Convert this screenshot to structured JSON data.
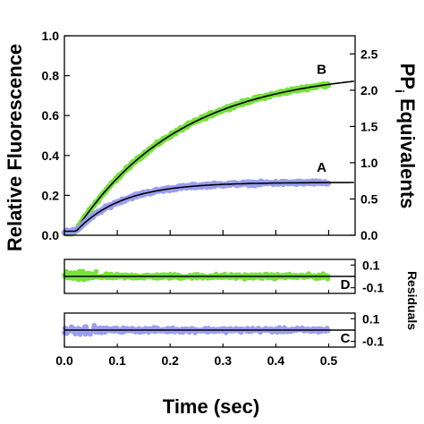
{
  "chart_data": {
    "type": "scatter",
    "main": {
      "xlabel": "Time (sec)",
      "ylabel_left": "Relative Fluorescence",
      "ylabel_right": "PP",
      "ylabel_right_sub": "i",
      "ylabel_right_suffix": " Equivalents",
      "xlim": [
        0,
        0.55
      ],
      "ylim_left": [
        0,
        1.0
      ],
      "ylim_right": [
        0,
        2.75
      ],
      "x_ticks": [
        "0.0",
        "0.1",
        "0.2",
        "0.3",
        "0.4",
        "0.5"
      ],
      "y_ticks_left": [
        "0.0",
        "0.2",
        "0.4",
        "0.6",
        "0.8",
        "1.0"
      ],
      "y_ticks_right": [
        "0.0",
        "0.5",
        "1.0",
        "1.5",
        "2.0",
        "2.5"
      ],
      "series": [
        {
          "label": "B",
          "color": "#78e03c",
          "fit_color": "#000000",
          "lag": 0.018,
          "amplitude": 0.82,
          "rate": 5.0,
          "baseline": 0.01,
          "noise": 0.012,
          "data_end": 0.5
        },
        {
          "label": "A",
          "color": "#9a9ef0",
          "fit_color": "#000000",
          "lag": 0.022,
          "amplitude": 0.245,
          "rate": 11.5,
          "baseline": 0.02,
          "noise": 0.012,
          "data_end": 0.5
        }
      ]
    },
    "residuals": {
      "title": "Residuals",
      "panels": [
        {
          "label": "D",
          "color": "#78e03c",
          "ylim": [
            -0.15,
            0.15
          ],
          "y_ticks": [
            "0.1",
            "-0.1"
          ]
        },
        {
          "label": "C",
          "color": "#9a9ef0",
          "ylim": [
            -0.15,
            0.15
          ],
          "y_ticks": [
            "0.1",
            "-0.1"
          ]
        }
      ]
    }
  }
}
